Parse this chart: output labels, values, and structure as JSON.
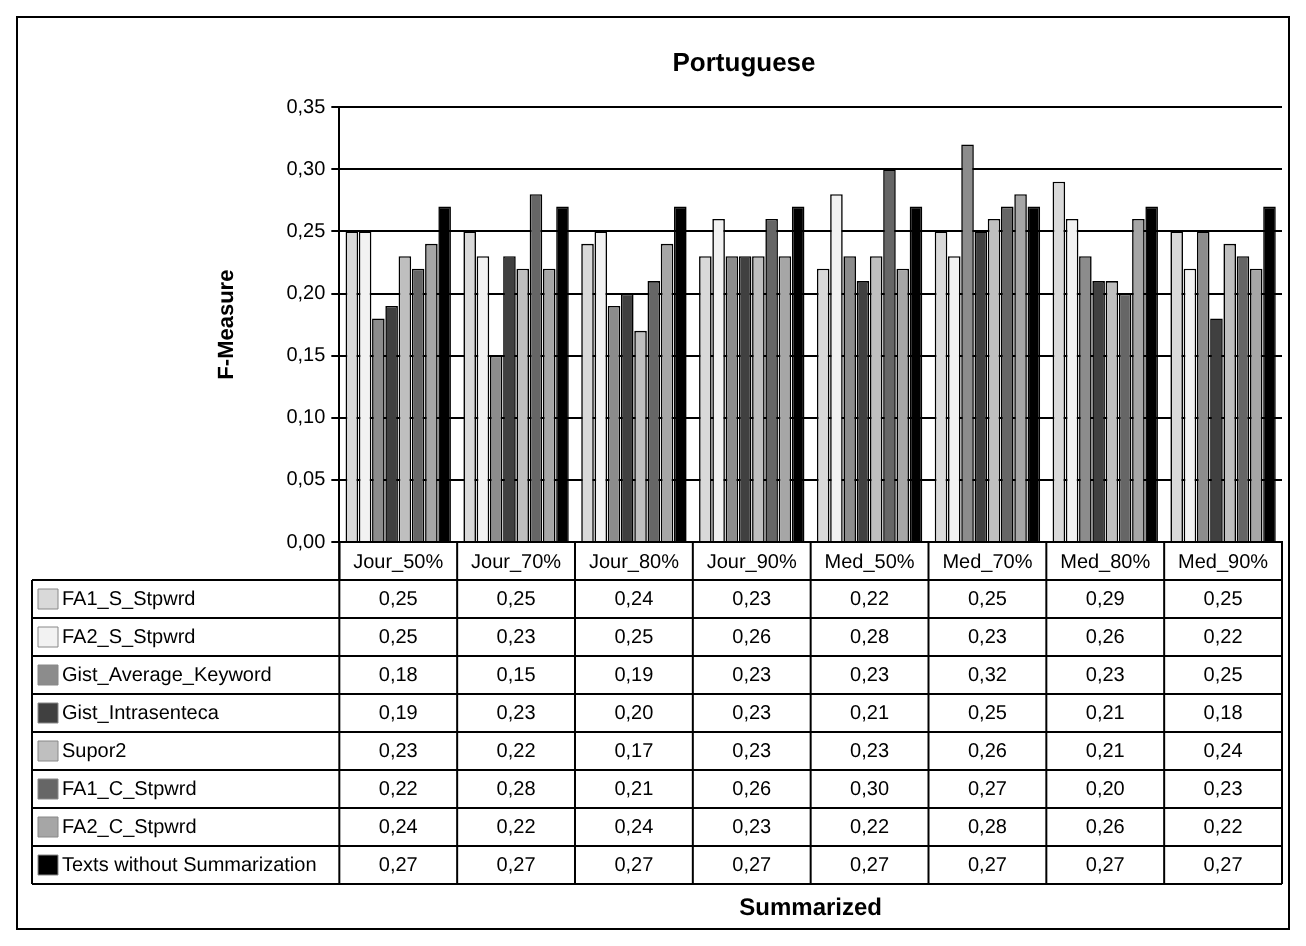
{
  "chart_data": {
    "type": "bar",
    "title": "Portuguese",
    "annotations": [
      "Summarized"
    ],
    "ylabel": "F-Measure",
    "categories": [
      "Jour_50%",
      "Jour_70%",
      "Jour_80%",
      "Jour_90%",
      "Med_50%",
      "Med_70%",
      "Med_80%",
      "Med_90%"
    ],
    "ylim": [
      0,
      0.35
    ],
    "yticks": [
      {
        "value": 0,
        "label": "0,00"
      },
      {
        "value": 0.05,
        "label": "0,05"
      },
      {
        "value": 0.1,
        "label": "0,10"
      },
      {
        "value": 0.15,
        "label": "0,15"
      },
      {
        "value": 0.2,
        "label": "0,20"
      },
      {
        "value": 0.25,
        "label": "0,25"
      },
      {
        "value": 0.3,
        "label": "0,30"
      },
      {
        "value": 0.35,
        "label": "0,35"
      }
    ],
    "grid": "y",
    "legend": "bottom",
    "series": [
      {
        "name": "FA1_S_Stpwrd",
        "color": "#d9d9d9",
        "values": [
          0.25,
          0.25,
          0.24,
          0.23,
          0.22,
          0.25,
          0.29,
          0.25
        ],
        "value_labels": [
          "0,25",
          "0,25",
          "0,24",
          "0,23",
          "0,22",
          "0,25",
          "0,29",
          "0,25"
        ]
      },
      {
        "name": "FA2_S_Stpwrd",
        "color": "#f2f2f2",
        "values": [
          0.25,
          0.23,
          0.25,
          0.26,
          0.28,
          0.23,
          0.26,
          0.22
        ],
        "value_labels": [
          "0,25",
          "0,23",
          "0,25",
          "0,26",
          "0,28",
          "0,23",
          "0,26",
          "0,22"
        ]
      },
      {
        "name": "Gist_Average_Keyword",
        "color": "#8c8c8c",
        "values": [
          0.18,
          0.15,
          0.19,
          0.23,
          0.23,
          0.32,
          0.23,
          0.25
        ],
        "value_labels": [
          "0,18",
          "0,15",
          "0,19",
          "0,23",
          "0,23",
          "0,32",
          "0,23",
          "0,25"
        ]
      },
      {
        "name": "Gist_Intrasenteca",
        "color": "#404040",
        "values": [
          0.19,
          0.23,
          0.2,
          0.23,
          0.21,
          0.25,
          0.21,
          0.18
        ],
        "value_labels": [
          "0,19",
          "0,23",
          "0,20",
          "0,23",
          "0,21",
          "0,25",
          "0,21",
          "0,18"
        ]
      },
      {
        "name": "Supor2",
        "color": "#bfbfbf",
        "values": [
          0.23,
          0.22,
          0.17,
          0.23,
          0.23,
          0.26,
          0.21,
          0.24
        ],
        "value_labels": [
          "0,23",
          "0,22",
          "0,17",
          "0,23",
          "0,23",
          "0,26",
          "0,21",
          "0,24"
        ]
      },
      {
        "name": "FA1_C_Stpwrd",
        "color": "#666666",
        "values": [
          0.22,
          0.28,
          0.21,
          0.26,
          0.3,
          0.27,
          0.2,
          0.23
        ],
        "value_labels": [
          "0,22",
          "0,28",
          "0,21",
          "0,26",
          "0,30",
          "0,27",
          "0,20",
          "0,23"
        ]
      },
      {
        "name": "FA2_C_Stpwrd",
        "color": "#a6a6a6",
        "values": [
          0.24,
          0.22,
          0.24,
          0.23,
          0.22,
          0.28,
          0.26,
          0.22
        ],
        "value_labels": [
          "0,24",
          "0,22",
          "0,24",
          "0,23",
          "0,22",
          "0,28",
          "0,26",
          "0,22"
        ]
      },
      {
        "name": "Texts without Summarization",
        "color": "#000000",
        "values": [
          0.27,
          0.27,
          0.27,
          0.27,
          0.27,
          0.27,
          0.27,
          0.27
        ],
        "value_labels": [
          "0,27",
          "0,27",
          "0,27",
          "0,27",
          "0,27",
          "0,27",
          "0,27",
          "0,27"
        ]
      }
    ]
  }
}
